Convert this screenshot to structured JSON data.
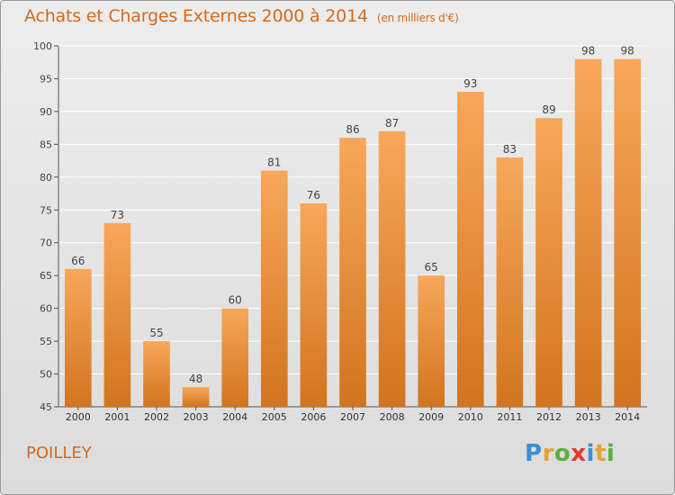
{
  "title": "Achats et Charges Externes 2000 à 2014",
  "unit_note": "(en milliers d'€)",
  "commune": "POILLEY",
  "brand": {
    "name": "Proxiti",
    "letters": [
      {
        "ch": "P",
        "color": "#3a8fd6"
      },
      {
        "ch": "r",
        "color": "#e8a13a"
      },
      {
        "ch": "o",
        "color": "#5bb03a"
      },
      {
        "ch": "x",
        "color": "#e23a2a"
      },
      {
        "ch": "i",
        "color": "#3a8fd6"
      },
      {
        "ch": "t",
        "color": "#e8a13a"
      },
      {
        "ch": "i",
        "color": "#5bb03a"
      }
    ]
  },
  "colors": {
    "accent": "#d26a1e",
    "bar_light": "#f7a85a",
    "bar_dark": "#d2741e",
    "gridline": "#ffffff"
  },
  "chart_data": {
    "type": "bar",
    "title": "Achats et Charges Externes 2000 à 2014",
    "categories": [
      "2000",
      "2001",
      "2002",
      "2003",
      "2004",
      "2005",
      "2006",
      "2007",
      "2008",
      "2009",
      "2010",
      "2011",
      "2012",
      "2013",
      "2014"
    ],
    "values": [
      66,
      73,
      55,
      48,
      60,
      81,
      76,
      86,
      87,
      65,
      93,
      83,
      89,
      98,
      98
    ],
    "ylim": [
      45,
      100
    ],
    "yticks": [
      45,
      50,
      55,
      60,
      65,
      70,
      75,
      80,
      85,
      90,
      95,
      100
    ],
    "grid": true,
    "xlabel": "",
    "ylabel": ""
  }
}
